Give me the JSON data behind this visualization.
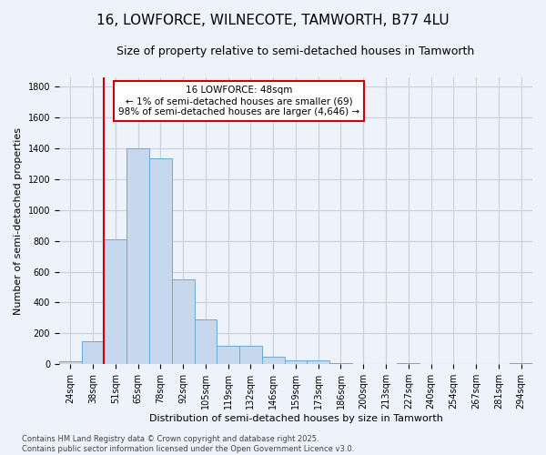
{
  "title1": "16, LOWFORCE, WILNECOTE, TAMWORTH, B77 4LU",
  "title2": "Size of property relative to semi-detached houses in Tamworth",
  "xlabel": "Distribution of semi-detached houses by size in Tamworth",
  "ylabel": "Number of semi-detached properties",
  "categories": [
    "24sqm",
    "38sqm",
    "51sqm",
    "65sqm",
    "78sqm",
    "92sqm",
    "105sqm",
    "119sqm",
    "132sqm",
    "146sqm",
    "159sqm",
    "173sqm",
    "186sqm",
    "200sqm",
    "213sqm",
    "227sqm",
    "240sqm",
    "254sqm",
    "267sqm",
    "281sqm",
    "294sqm"
  ],
  "values": [
    20,
    150,
    810,
    1400,
    1335,
    550,
    290,
    120,
    120,
    48,
    25,
    25,
    10,
    0,
    0,
    8,
    0,
    0,
    0,
    0,
    10
  ],
  "bar_color": "#c5d8ee",
  "bar_edge_color": "#6aaad4",
  "vline_color": "#cc0000",
  "vline_position": 1.5,
  "annotation_text": "16 LOWFORCE: 48sqm\n← 1% of semi-detached houses are smaller (69)\n98% of semi-detached houses are larger (4,646) →",
  "annotation_box_color": "white",
  "annotation_edge_color": "#cc0000",
  "footnote": "Contains HM Land Registry data © Crown copyright and database right 2025.\nContains public sector information licensed under the Open Government Licence v3.0.",
  "ylim": [
    0,
    1860
  ],
  "yticks": [
    0,
    200,
    400,
    600,
    800,
    1000,
    1200,
    1400,
    1600,
    1800
  ],
  "title1_fontsize": 11,
  "title2_fontsize": 9,
  "axis_label_fontsize": 8,
  "tick_fontsize": 7,
  "annotation_fontsize": 7.5,
  "footnote_fontsize": 6,
  "background_color": "#eef2fa",
  "grid_color": "#c8d0e0"
}
